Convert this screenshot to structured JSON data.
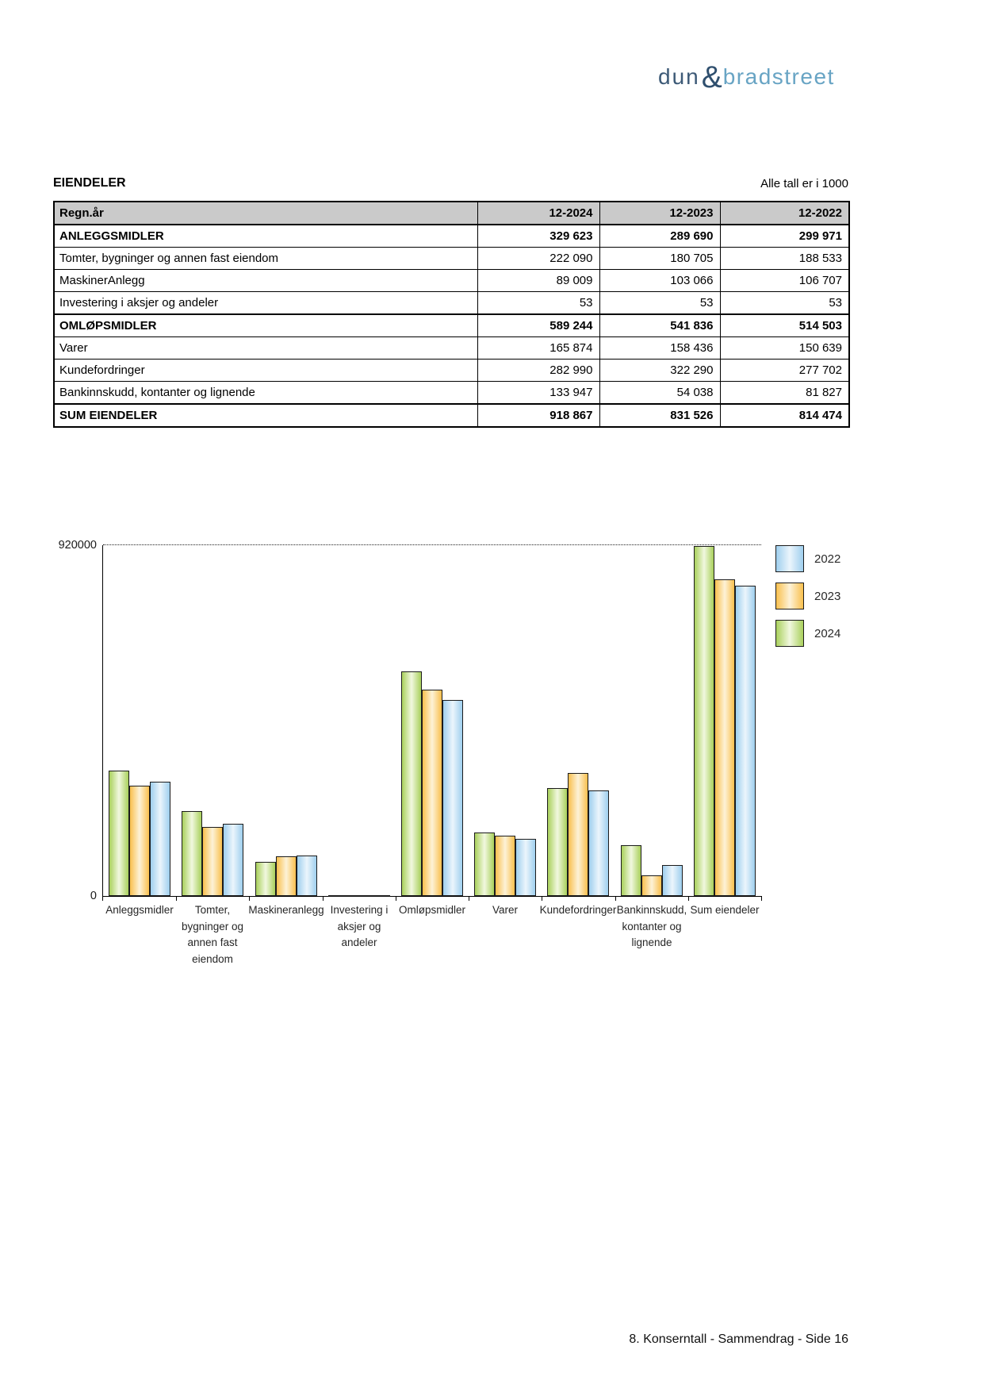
{
  "logo": {
    "part1": "dun",
    "amp": "&",
    "part2": "bradstreet",
    "colors": {
      "dun": "#3d5a77",
      "amp": "#2f4f6e",
      "bradstreet": "#68a4c4"
    }
  },
  "header": {
    "title": "EIENDELER",
    "note": "Alle tall er i 1000"
  },
  "table": {
    "header": [
      "Regn.år",
      "12-2024",
      "12-2023",
      "12-2022"
    ],
    "rows": [
      {
        "label": "ANLEGGSMIDLER",
        "values": [
          "329 623",
          "289 690",
          "299 971"
        ],
        "bold": true
      },
      {
        "label": "Tomter, bygninger og annen fast eiendom",
        "values": [
          "222 090",
          "180 705",
          "188 533"
        ],
        "bold": false
      },
      {
        "label": "MaskinerAnlegg",
        "values": [
          "89 009",
          "103 066",
          "106 707"
        ],
        "bold": false
      },
      {
        "label": "Investering i aksjer og andeler",
        "values": [
          "53",
          "53",
          "53"
        ],
        "bold": false
      },
      {
        "label": "OMLØPSMIDLER",
        "values": [
          "589 244",
          "541 836",
          "514 503"
        ],
        "bold": true
      },
      {
        "label": "Varer",
        "values": [
          "165 874",
          "158 436",
          "150 639"
        ],
        "bold": false
      },
      {
        "label": "Kundefordringer",
        "values": [
          "282 990",
          "322 290",
          "277 702"
        ],
        "bold": false
      },
      {
        "label": "Bankinnskudd, kontanter og lignende",
        "values": [
          "133 947",
          "54 038",
          "81 827"
        ],
        "bold": false
      },
      {
        "label": "SUM EIENDELER",
        "values": [
          "918 867",
          "831 526",
          "814 474"
        ],
        "bold": true
      }
    ]
  },
  "chart_data": {
    "type": "bar",
    "title": "",
    "xlabel": "",
    "ylabel": "",
    "categories": [
      "Anleggsmidler",
      "Tomter, bygninger og annen fast eiendom",
      "Maskineranlegg",
      "Investering i aksjer og andeler",
      "Omløpsmidler",
      "Varer",
      "Kundefordringer",
      "Bankinnskudd, kontanter og lignende",
      "Sum eiendeler"
    ],
    "category_label_lines": [
      "Anleggsmidler",
      "Tomter,\nbygninger og\nannen fast\neiendom",
      "Maskineranlegg",
      "Investering i\naksjer og\nandeler",
      "Omløpsmidler",
      "Varer",
      "Kundefordringer",
      "Bankinnskudd,\nkontanter og\nlignende",
      "Sum eiendeler"
    ],
    "series": [
      {
        "name": "2024",
        "values": [
          329623,
          222090,
          89009,
          53,
          589244,
          165874,
          282990,
          133947,
          918867
        ],
        "edge_color": "#a9d05c",
        "center_color": "#f1f8df"
      },
      {
        "name": "2023",
        "values": [
          289690,
          180705,
          103066,
          53,
          541836,
          158436,
          322290,
          54038,
          831526
        ],
        "edge_color": "#f9c04e",
        "center_color": "#fdf2d7"
      },
      {
        "name": "2022",
        "values": [
          299971,
          188533,
          106707,
          53,
          514503,
          150639,
          277702,
          81827,
          814474
        ],
        "edge_color": "#9fcfee",
        "center_color": "#ebf5fc"
      }
    ],
    "legend": [
      "2022",
      "2023",
      "2024"
    ],
    "legend_position": "right",
    "ylim": [
      0,
      920000
    ],
    "yticks": [
      {
        "label": "920000",
        "value": 920000
      },
      {
        "label": "0",
        "value": 0
      }
    ],
    "grid": "single dotted gridline at y-max"
  },
  "footer": {
    "text": "8. Konserntall - Sammendrag - Side 16"
  }
}
